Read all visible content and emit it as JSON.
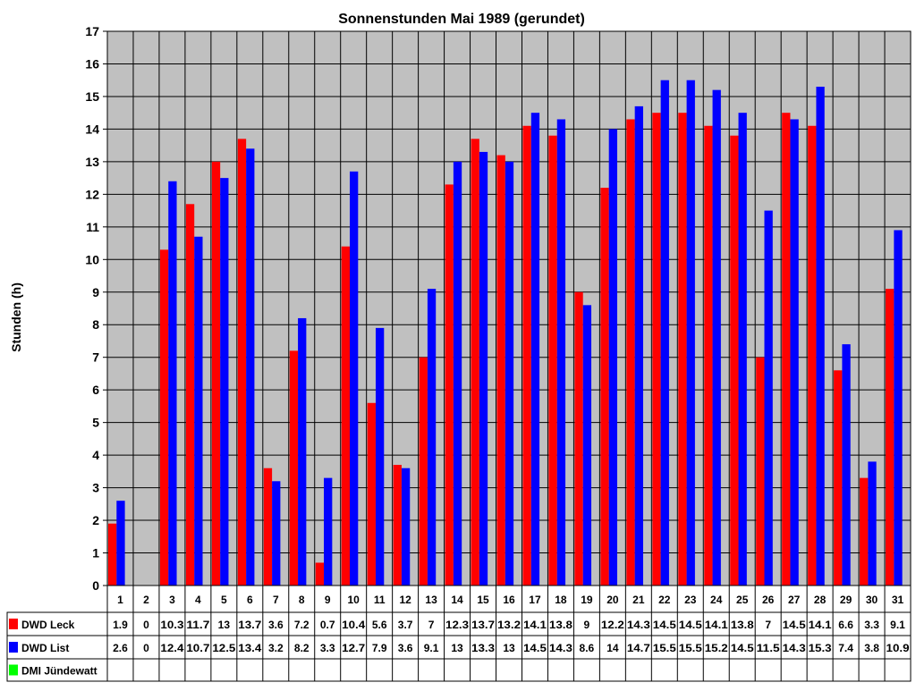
{
  "chart_data": {
    "type": "bar",
    "title": "Sonnenstunden Mai 1989 (gerundet)",
    "xlabel": "",
    "ylabel": "Stunden (h)",
    "ylim": [
      0,
      17
    ],
    "yticks": [
      0,
      1,
      2,
      3,
      4,
      5,
      6,
      7,
      8,
      9,
      10,
      11,
      12,
      13,
      14,
      15,
      16,
      17
    ],
    "grid": true,
    "plot_background": "#c0c0c0",
    "legend_placement": "bottom data table",
    "categories": [
      "1",
      "2",
      "3",
      "4",
      "5",
      "6",
      "7",
      "8",
      "9",
      "10",
      "11",
      "12",
      "13",
      "14",
      "15",
      "16",
      "17",
      "18",
      "19",
      "20",
      "21",
      "22",
      "23",
      "24",
      "25",
      "26",
      "27",
      "28",
      "29",
      "30",
      "31"
    ],
    "series": [
      {
        "name": "DWD Leck",
        "color": "#ff0000",
        "values": [
          1.9,
          0,
          10.3,
          11.7,
          13,
          13.7,
          3.6,
          7.2,
          0.7,
          10.4,
          5.6,
          3.7,
          7,
          12.3,
          13.7,
          13.2,
          14.1,
          13.8,
          9,
          12.2,
          14.3,
          14.5,
          14.5,
          14.1,
          13.8,
          7,
          14.5,
          14.1,
          6.6,
          3.3,
          9.1
        ]
      },
      {
        "name": "DWD List",
        "color": "#0000ff",
        "values": [
          2.6,
          0,
          12.4,
          10.7,
          12.5,
          13.4,
          3.2,
          8.2,
          3.3,
          12.7,
          7.9,
          3.6,
          9.1,
          13,
          13.3,
          13,
          14.5,
          14.3,
          8.6,
          14,
          14.7,
          15.5,
          15.5,
          15.2,
          14.5,
          11.5,
          14.3,
          15.3,
          7.4,
          3.8,
          10.9
        ]
      },
      {
        "name": "DMI Jündewatt",
        "color": "#00ff00",
        "values": [
          null,
          null,
          null,
          null,
          null,
          null,
          null,
          null,
          null,
          null,
          null,
          null,
          null,
          null,
          null,
          null,
          null,
          null,
          null,
          null,
          null,
          null,
          null,
          null,
          null,
          null,
          null,
          null,
          null,
          null,
          null
        ]
      }
    ]
  }
}
